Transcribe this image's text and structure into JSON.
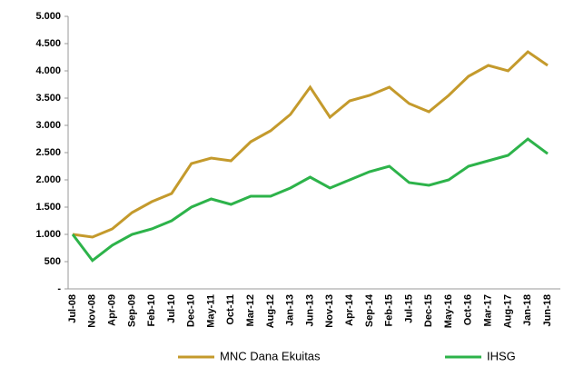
{
  "chart_data": {
    "type": "line",
    "categories": [
      "Jul-08",
      "Nov-08",
      "Apr-09",
      "Sep-09",
      "Feb-10",
      "Jul-10",
      "Dec-10",
      "May-11",
      "Oct-11",
      "Mar-12",
      "Aug-12",
      "Jan-13",
      "Jun-13",
      "Nov-13",
      "Apr-14",
      "Sep-14",
      "Feb-15",
      "Jul-15",
      "Dec-15",
      "May-16",
      "Oct-16",
      "Mar-17",
      "Aug-17",
      "Jan-18",
      "Jun-18"
    ],
    "series": [
      {
        "name": "MNC Dana Ekuitas",
        "color": "#c49a2c",
        "values": [
          1000,
          950,
          1100,
          1400,
          1600,
          1750,
          2300,
          2400,
          2350,
          2700,
          2900,
          3200,
          3700,
          3150,
          3450,
          3550,
          3700,
          3400,
          3250,
          3550,
          3900,
          4100,
          4000,
          4350,
          4100
        ]
      },
      {
        "name": "IHSG",
        "color": "#2db34a",
        "values": [
          1000,
          520,
          800,
          1000,
          1100,
          1250,
          1500,
          1650,
          1550,
          1700,
          1700,
          1850,
          2050,
          1850,
          2000,
          2150,
          2250,
          1950,
          1900,
          2000,
          2250,
          2350,
          2450,
          2750,
          2480
        ]
      }
    ],
    "ylim": [
      0,
      5000
    ],
    "yticks": [
      {
        "value": 0,
        "label": "-"
      },
      500,
      {
        "value": 1000,
        "label": "1.000"
      },
      {
        "value": 1500,
        "label": "1.500"
      },
      {
        "value": 2000,
        "label": "2.000"
      },
      {
        "value": 2500,
        "label": "2.500"
      },
      {
        "value": 3000,
        "label": "3.000"
      },
      {
        "value": 3500,
        "label": "3.500"
      },
      {
        "value": 4000,
        "label": "4.000"
      },
      {
        "value": 4500,
        "label": "4.500"
      },
      {
        "value": 5000,
        "label": "5.000"
      }
    ],
    "grid": false
  }
}
